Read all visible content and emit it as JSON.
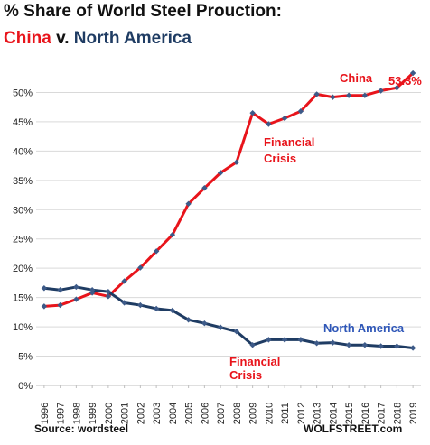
{
  "title": {
    "line1": "% Share of World Steel Prouction:",
    "china": "China",
    "vs": "v.",
    "north_america": "North America"
  },
  "source": "Source: wordsteel",
  "brand": "WOLFSTREET.com",
  "colors": {
    "china": "#e8141b",
    "north_america": "#1f3c63",
    "grid": "#d9d9d9",
    "marker": "#3d5a88"
  },
  "chart_data": {
    "type": "line",
    "x": [
      "1996",
      "1997",
      "1998",
      "1999",
      "2000",
      "2001",
      "2002",
      "2003",
      "2004",
      "2005",
      "2006",
      "2007",
      "2008",
      "2009",
      "2010",
      "2011",
      "2012",
      "2013",
      "2014",
      "2015",
      "2016",
      "2017",
      "2018",
      "2019"
    ],
    "series": [
      {
        "name": "China",
        "values": [
          13.5,
          13.7,
          14.7,
          15.8,
          15.2,
          17.8,
          20.1,
          22.9,
          25.7,
          31.0,
          33.7,
          36.3,
          38.1,
          46.5,
          44.6,
          45.6,
          46.8,
          49.7,
          49.2,
          49.5,
          49.5,
          50.3,
          50.8,
          53.3
        ]
      },
      {
        "name": "North America",
        "values": [
          16.6,
          16.3,
          16.8,
          16.3,
          16.0,
          14.1,
          13.7,
          13.1,
          12.8,
          11.2,
          10.6,
          9.9,
          9.2,
          6.9,
          7.8,
          7.8,
          7.8,
          7.2,
          7.3,
          6.9,
          6.9,
          6.7,
          6.7,
          6.4
        ]
      }
    ],
    "ylim": [
      0,
      55
    ],
    "yticks": [
      "0%",
      "5%",
      "10%",
      "15%",
      "20%",
      "25%",
      "30%",
      "35%",
      "40%",
      "45%",
      "50%"
    ],
    "grid": true,
    "annotations": [
      {
        "text": "53.3%",
        "series": "China"
      },
      {
        "text": "China",
        "series": "China"
      },
      {
        "text": "Financial Crisis",
        "series": "China"
      },
      {
        "text": "North America",
        "series": "North America"
      },
      {
        "text": "Financial Crisis",
        "series": "North America"
      }
    ]
  }
}
